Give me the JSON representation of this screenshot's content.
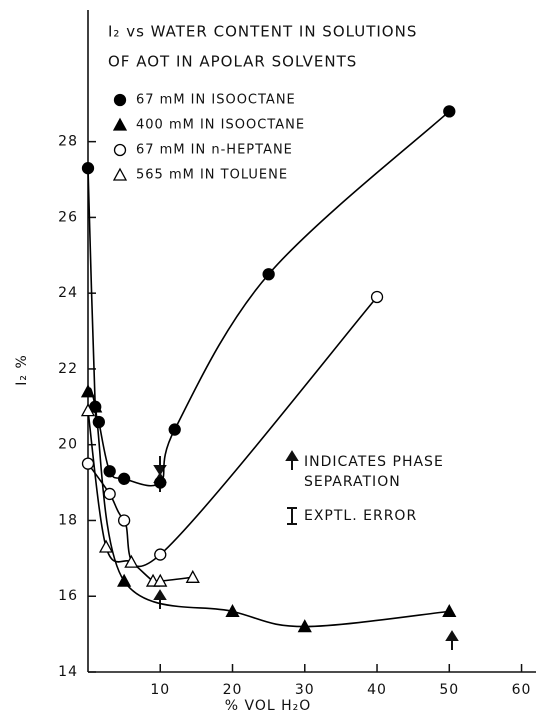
{
  "chart_data": {
    "type": "scatter",
    "title": [
      "I₂ vs WATER CONTENT IN SOLUTIONS",
      "OF AOT IN APOLAR SOLVENTS"
    ],
    "x_label": "% VOL H₂O",
    "y_label": "I₂ %",
    "xlim": [
      0,
      62
    ],
    "ylim": [
      14,
      31
    ],
    "xticks": [
      10,
      20,
      30,
      40,
      50,
      60
    ],
    "yticks": [
      14,
      16,
      18,
      20,
      22,
      24,
      26,
      28
    ],
    "series": [
      {
        "name": "67 mM IN ISOOCTANE",
        "color": "#000000",
        "marker": "circle",
        "filled": true,
        "x": [
          0,
          1,
          1.5,
          3,
          5,
          10,
          12,
          25,
          50
        ],
        "values": [
          27.3,
          21.0,
          20.6,
          19.3,
          19.1,
          19.0,
          20.4,
          24.5,
          28.8
        ]
      },
      {
        "name": "400 mM IN ISOOCTANE",
        "color": "#000000",
        "marker": "triangle",
        "filled": true,
        "x": [
          0,
          1,
          5,
          20,
          30,
          50
        ],
        "values": [
          21.4,
          21.0,
          16.4,
          15.6,
          15.2,
          15.6
        ]
      },
      {
        "name": "67 mM IN n-HEPTANE",
        "color": "#000000",
        "marker": "circle",
        "filled": false,
        "x": [
          0,
          3,
          5,
          10,
          40
        ],
        "values": [
          19.5,
          18.7,
          18.0,
          17.1,
          23.9
        ]
      },
      {
        "name": "565 mM IN TOLUENE",
        "color": "#000000",
        "marker": "triangle",
        "filled": false,
        "x": [
          0,
          2.5,
          6,
          9,
          10,
          14.5
        ],
        "values": [
          20.9,
          17.3,
          16.9,
          16.4,
          16.4,
          16.5
        ]
      }
    ],
    "annotations": [
      "INDICATES PHASE",
      "SEPARATION",
      "EXPTL. ERROR"
    ]
  }
}
